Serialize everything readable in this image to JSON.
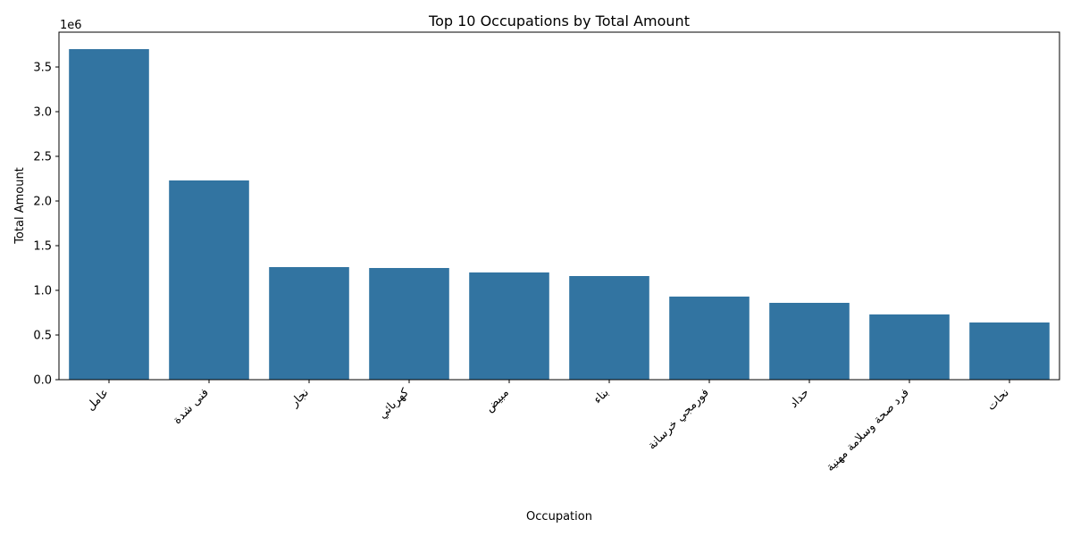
{
  "chart_data": {
    "type": "bar",
    "title": "Top 10 Occupations by Total Amount",
    "xlabel": "Occupation",
    "ylabel": "Total Amount",
    "y_scale_label": "1e6",
    "categories": [
      "عامل",
      "فنی شدة",
      "نجار",
      "كهربائي",
      "مبيض",
      "بناء",
      "فورمجي خرسانة",
      "حداد",
      "فرد صحة وسلامة مهنية",
      "نحات"
    ],
    "values": [
      3700000,
      2230000,
      1260000,
      1250000,
      1200000,
      1160000,
      930000,
      860000,
      730000,
      640000
    ],
    "ylim": [
      0,
      3890000
    ],
    "yticks": [
      0,
      500000,
      1000000,
      1500000,
      2000000,
      2500000,
      3000000,
      3500000
    ],
    "ytick_labels": [
      "0.0",
      "0.5",
      "1.0",
      "1.5",
      "2.0",
      "2.5",
      "3.0",
      "3.5"
    ],
    "bar_color": "#3274a1",
    "grid": false,
    "legend": false
  }
}
